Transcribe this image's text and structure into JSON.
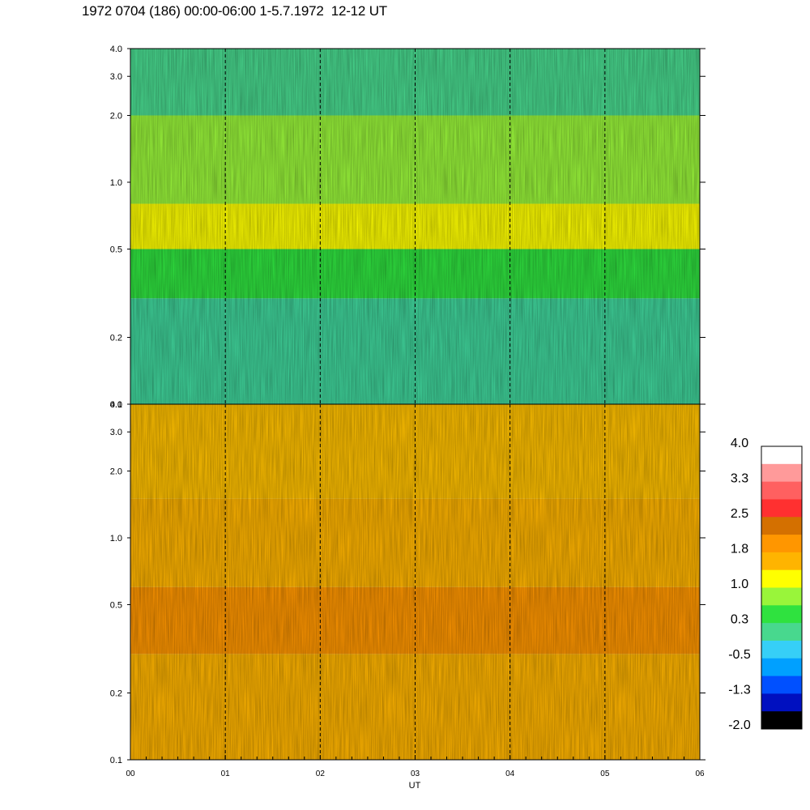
{
  "header": {
    "title": "1972 0704 (186) 00:00-06:00 1-5.7.1972  12-12 UT"
  },
  "chart_data": [
    {
      "type": "heatmap",
      "panel": "upper",
      "x_range": [
        "00",
        "06"
      ],
      "y_ticks": [
        "0.1",
        "0.2",
        "0.5",
        "1.0",
        "2.0",
        "3.0",
        "4.0"
      ],
      "y_scale": "log",
      "ylim": [
        0.1,
        4.0
      ],
      "dashed_hour_markers": [
        "01",
        "02",
        "03",
        "04",
        "05"
      ],
      "dominant_colors_by_band": {
        "0.1-0.3": "#3fd39a",
        "0.3-0.5": "#2fe23f",
        "0.5-0.8": "#ffff00",
        "0.8-2.0": "#99f53a",
        "2.0-4.0": "#48d88e"
      }
    },
    {
      "type": "heatmap",
      "panel": "lower",
      "x_range": [
        "00",
        "06"
      ],
      "y_ticks": [
        "0.1",
        "0.2",
        "0.5",
        "1.0",
        "2.0",
        "3.0",
        "4.0"
      ],
      "y_scale": "log",
      "ylim": [
        0.1,
        4.0
      ],
      "dashed_hour_markers": [
        "01",
        "02",
        "03",
        "04",
        "05"
      ],
      "dominant_colors_by_band": {
        "0.1-0.3": "#ffb400",
        "0.3-0.6": "#ff9600",
        "0.6-1.5": "#ffb400",
        "1.5-4.0": "#ffc000"
      }
    }
  ],
  "x_axis": {
    "ticks": [
      "00",
      "01",
      "02",
      "03",
      "04",
      "05",
      "06"
    ],
    "label": "UT"
  },
  "colorbar": {
    "labels": [
      "4.0",
      "3.3",
      "2.5",
      "1.8",
      "1.0",
      "0.3",
      "-0.5",
      "-1.3",
      "-2.0"
    ],
    "colors_top_to_bottom": [
      "#ffffff",
      "#ff9a9a",
      "#ff6060",
      "#ff3030",
      "#d47000",
      "#ff9600",
      "#ffb400",
      "#ffff00",
      "#99f53a",
      "#2fe23f",
      "#48d88e",
      "#36cff7",
      "#00a0ff",
      "#0050ff",
      "#0010c0",
      "#000000"
    ]
  }
}
